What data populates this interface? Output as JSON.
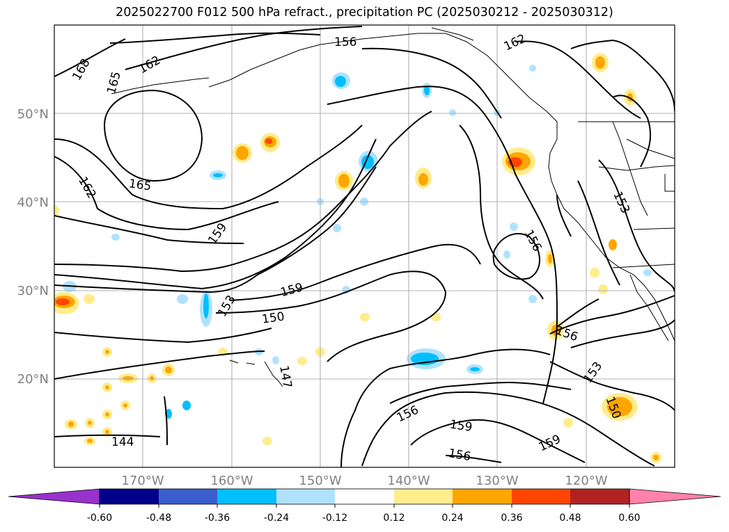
{
  "title": "2025022700 F012 500 hPa refract., precipitation PC (2025030212 - 2025030312)",
  "map": {
    "lon_range": [
      -180,
      -110
    ],
    "lat_range": [
      10,
      60
    ],
    "lat_ticks": [
      {
        "value": 50,
        "label": "50°N"
      },
      {
        "value": 40,
        "label": "40°N"
      },
      {
        "value": 30,
        "label": "30°N"
      },
      {
        "value": 20,
        "label": "20°N"
      }
    ],
    "lon_ticks": [
      {
        "value": -170,
        "label": "170°W"
      },
      {
        "value": -160,
        "label": "160°W"
      },
      {
        "value": -150,
        "label": "150°W"
      },
      {
        "value": -140,
        "label": "140°W"
      },
      {
        "value": -130,
        "label": "130°W"
      },
      {
        "value": -120,
        "label": "120°W"
      }
    ],
    "contour_labels": [
      "168",
      "165",
      "162",
      "156",
      "162",
      "165",
      "162",
      "159",
      "159",
      "153",
      "150",
      "147",
      "156",
      "156",
      "159",
      "156",
      "159",
      "153",
      "150",
      "153",
      "156",
      "144"
    ]
  },
  "colorbar": {
    "colors": [
      "#9932cc",
      "#00008b",
      "#3a5fcd",
      "#00bfff",
      "#b0e2ff",
      "#ffffff",
      "#ffec8b",
      "#ffa500",
      "#ff4500",
      "#b22222",
      "#ff82ab"
    ],
    "labels": [
      "-0.60",
      "-0.48",
      "-0.36",
      "-0.24",
      "-0.12",
      "0.12",
      "0.24",
      "0.36",
      "0.48",
      "0.60"
    ]
  },
  "colors": {
    "lightblue": "#b0e2ff",
    "blue": "#00bfff",
    "yellow": "#ffec8b",
    "orange": "#ffa500",
    "red": "#ff4500"
  }
}
